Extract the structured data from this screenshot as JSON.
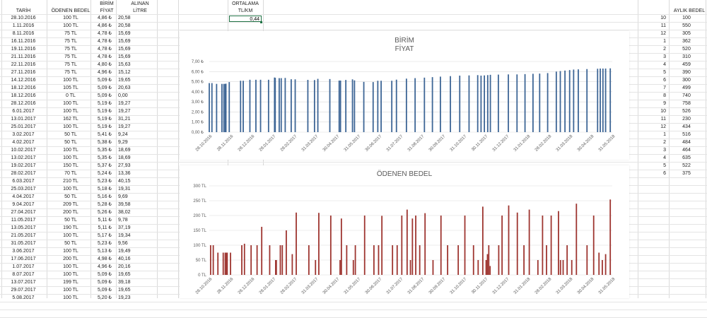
{
  "headers": {
    "tarih": "TARİH",
    "odenen_bedel": "ÖDENEN BEDEL",
    "birim_fiyat_1": "BİRİM",
    "birim_fiyat_2": "FİYAT",
    "alinan_litre_1": "ALINAN",
    "alinan_litre_2": "LİTRE",
    "ortalama_1": "ORTALAMA",
    "ortalama_2": "TL/KM",
    "aylik_bedel": "AYLIK BEDEL"
  },
  "ortalama_value": "0,44",
  "rows": [
    {
      "tarih": "28.10.2016",
      "bedel": "100 TL",
      "fiyat": "4,86 ₺",
      "litre": "20,58"
    },
    {
      "tarih": "1.11.2016",
      "bedel": "100 TL",
      "fiyat": "4,86 ₺",
      "litre": "20,58"
    },
    {
      "tarih": "8.11.2016",
      "bedel": "75 TL",
      "fiyat": "4,78 ₺",
      "litre": "15,69"
    },
    {
      "tarih": "16.11.2016",
      "bedel": "75 TL",
      "fiyat": "4,78 ₺",
      "litre": "15,69"
    },
    {
      "tarih": "19.11.2016",
      "bedel": "75 TL",
      "fiyat": "4,78 ₺",
      "litre": "15,69"
    },
    {
      "tarih": "21.11.2016",
      "bedel": "75 TL",
      "fiyat": "4,78 ₺",
      "litre": "15,69"
    },
    {
      "tarih": "22.11.2016",
      "bedel": "75 TL",
      "fiyat": "4,80 ₺",
      "litre": "15,63"
    },
    {
      "tarih": "27.11.2016",
      "bedel": "75 TL",
      "fiyat": "4,96 ₺",
      "litre": "15,12"
    },
    {
      "tarih": "14.12.2016",
      "bedel": "100 TL",
      "fiyat": "5,09 ₺",
      "litre": "19,65"
    },
    {
      "tarih": "18.12.2016",
      "bedel": "105 TL",
      "fiyat": "5,09 ₺",
      "litre": "20,63"
    },
    {
      "tarih": "18.12.2016",
      "bedel": "0 TL",
      "fiyat": "5,09 ₺",
      "litre": "0,00"
    },
    {
      "tarih": "28.12.2016",
      "bedel": "100 TL",
      "fiyat": "5,19 ₺",
      "litre": "19,27"
    },
    {
      "tarih": "6.01.2017",
      "bedel": "100 TL",
      "fiyat": "5,19 ₺",
      "litre": "19,27"
    },
    {
      "tarih": "13.01.2017",
      "bedel": "162 TL",
      "fiyat": "5,19 ₺",
      "litre": "31,21"
    },
    {
      "tarih": "25.01.2017",
      "bedel": "100 TL",
      "fiyat": "5,19 ₺",
      "litre": "19,27"
    },
    {
      "tarih": "3.02.2017",
      "bedel": "50 TL",
      "fiyat": "5,41 ₺",
      "litre": "9,24"
    },
    {
      "tarih": "4.02.2017",
      "bedel": "50 TL",
      "fiyat": "5,38 ₺",
      "litre": "9,29"
    },
    {
      "tarih": "10.02.2017",
      "bedel": "100 TL",
      "fiyat": "5,35 ₺",
      "litre": "18,69"
    },
    {
      "tarih": "13.02.2017",
      "bedel": "100 TL",
      "fiyat": "5,35 ₺",
      "litre": "18,69"
    },
    {
      "tarih": "19.02.2017",
      "bedel": "150 TL",
      "fiyat": "5,37 ₺",
      "litre": "27,93"
    },
    {
      "tarih": "28.02.2017",
      "bedel": "70 TL",
      "fiyat": "5,24 ₺",
      "litre": "13,36"
    },
    {
      "tarih": "6.03.2017",
      "bedel": "210 TL",
      "fiyat": "5,23 ₺",
      "litre": "40,15"
    },
    {
      "tarih": "25.03.2017",
      "bedel": "100 TL",
      "fiyat": "5,18 ₺",
      "litre": "19,31"
    },
    {
      "tarih": "4.04.2017",
      "bedel": "50 TL",
      "fiyat": "5,16 ₺",
      "litre": "9,69"
    },
    {
      "tarih": "9.04.2017",
      "bedel": "209 TL",
      "fiyat": "5,28 ₺",
      "litre": "39,58"
    },
    {
      "tarih": "27.04.2017",
      "bedel": "200 TL",
      "fiyat": "5,26 ₺",
      "litre": "38,02"
    },
    {
      "tarih": "11.05.2017",
      "bedel": "50 TL",
      "fiyat": "5,11 ₺",
      "litre": "9,78"
    },
    {
      "tarih": "13.05.2017",
      "bedel": "190 TL",
      "fiyat": "5,11 ₺",
      "litre": "37,19"
    },
    {
      "tarih": "21.05.2017",
      "bedel": "100 TL",
      "fiyat": "5,17 ₺",
      "litre": "19,34"
    },
    {
      "tarih": "31.05.2017",
      "bedel": "50 TL",
      "fiyat": "5,23 ₺",
      "litre": "9,56"
    },
    {
      "tarih": "3.06.2017",
      "bedel": "100 TL",
      "fiyat": "5,13 ₺",
      "litre": "19,49"
    },
    {
      "tarih": "17.06.2017",
      "bedel": "200 TL",
      "fiyat": "4,98 ₺",
      "litre": "40,16"
    },
    {
      "tarih": "1.07.2017",
      "bedel": "100 TL",
      "fiyat": "4,96 ₺",
      "litre": "20,16"
    },
    {
      "tarih": "8.07.2017",
      "bedel": "100 TL",
      "fiyat": "5,09 ₺",
      "litre": "19,65"
    },
    {
      "tarih": "13.07.2017",
      "bedel": "199 TL",
      "fiyat": "5,09 ₺",
      "litre": "39,18"
    },
    {
      "tarih": "29.07.2017",
      "bedel": "100 TL",
      "fiyat": "5,09 ₺",
      "litre": "19,65"
    },
    {
      "tarih": "5.08.2017",
      "bedel": "100 TL",
      "fiyat": "5,20 ₺",
      "litre": "19,23"
    }
  ],
  "monthly": [
    {
      "ay": "10",
      "bedel": "100"
    },
    {
      "ay": "11",
      "bedel": "550"
    },
    {
      "ay": "12",
      "bedel": "305"
    },
    {
      "ay": "1",
      "bedel": "362"
    },
    {
      "ay": "2",
      "bedel": "520"
    },
    {
      "ay": "3",
      "bedel": "310"
    },
    {
      "ay": "4",
      "bedel": "459"
    },
    {
      "ay": "5",
      "bedel": "390"
    },
    {
      "ay": "6",
      "bedel": "300"
    },
    {
      "ay": "7",
      "bedel": "499"
    },
    {
      "ay": "8",
      "bedel": "740"
    },
    {
      "ay": "9",
      "bedel": "758"
    },
    {
      "ay": "10",
      "bedel": "526"
    },
    {
      "ay": "11",
      "bedel": "230"
    },
    {
      "ay": "12",
      "bedel": "434"
    },
    {
      "ay": "1",
      "bedel": "516"
    },
    {
      "ay": "2",
      "bedel": "484"
    },
    {
      "ay": "3",
      "bedel": "464"
    },
    {
      "ay": "4",
      "bedel": "635"
    },
    {
      "ay": "5",
      "bedel": "522"
    },
    {
      "ay": "6",
      "bedel": "375"
    }
  ],
  "colors": {
    "fiyat_bar": "#3e6696",
    "bedel_bar": "#9e3530",
    "axis_text": "#595959",
    "grid": "#d9d9d9",
    "selection": "#217346"
  },
  "chart_data": [
    {
      "type": "bar",
      "title": "BİRİM FİYAT",
      "title_line1": "BİRİM",
      "title_line2": "FİYAT",
      "ylim": [
        0,
        7
      ],
      "ytick_labels": [
        "0,00 ₺",
        "1,00 ₺",
        "2,00 ₺",
        "3,00 ₺",
        "4,00 ₺",
        "5,00 ₺",
        "6,00 ₺",
        "7,00 ₺"
      ],
      "xtick_labels": [
        "28.10.2016",
        "28.11.2016",
        "28.12.2016",
        "28.01.2017",
        "28.02.2017",
        "31.03.2017",
        "30.04.2017",
        "31.05.2017",
        "30.06.2017",
        "31.07.2017",
        "31.08.2017",
        "30.09.2017",
        "31.10.2017",
        "30.11.2017",
        "31.12.2017",
        "31.01.2018",
        "28.02.2018",
        "31.03.2018",
        "30.04.2018",
        "31.05.2018"
      ],
      "x_start": "2016-10-28",
      "x_end": "2018-06-25",
      "points": [
        {
          "d": "2016-10-28",
          "v": 4.86
        },
        {
          "d": "2016-11-01",
          "v": 4.86
        },
        {
          "d": "2016-11-08",
          "v": 4.78
        },
        {
          "d": "2016-11-16",
          "v": 4.78
        },
        {
          "d": "2016-11-19",
          "v": 4.78
        },
        {
          "d": "2016-11-21",
          "v": 4.78
        },
        {
          "d": "2016-11-22",
          "v": 4.8
        },
        {
          "d": "2016-11-27",
          "v": 4.96
        },
        {
          "d": "2016-12-14",
          "v": 5.09
        },
        {
          "d": "2016-12-18",
          "v": 5.09
        },
        {
          "d": "2016-12-28",
          "v": 5.19
        },
        {
          "d": "2017-01-06",
          "v": 5.19
        },
        {
          "d": "2017-01-13",
          "v": 5.19
        },
        {
          "d": "2017-01-25",
          "v": 5.19
        },
        {
          "d": "2017-02-03",
          "v": 5.41
        },
        {
          "d": "2017-02-04",
          "v": 5.38
        },
        {
          "d": "2017-02-10",
          "v": 5.35
        },
        {
          "d": "2017-02-13",
          "v": 5.35
        },
        {
          "d": "2017-02-19",
          "v": 5.37
        },
        {
          "d": "2017-02-28",
          "v": 5.24
        },
        {
          "d": "2017-03-06",
          "v": 5.23
        },
        {
          "d": "2017-03-25",
          "v": 5.18
        },
        {
          "d": "2017-04-04",
          "v": 5.16
        },
        {
          "d": "2017-04-09",
          "v": 5.28
        },
        {
          "d": "2017-04-27",
          "v": 5.26
        },
        {
          "d": "2017-05-11",
          "v": 5.11
        },
        {
          "d": "2017-05-13",
          "v": 5.11
        },
        {
          "d": "2017-05-21",
          "v": 5.17
        },
        {
          "d": "2017-05-31",
          "v": 5.23
        },
        {
          "d": "2017-06-03",
          "v": 5.13
        },
        {
          "d": "2017-06-17",
          "v": 4.98
        },
        {
          "d": "2017-07-01",
          "v": 4.96
        },
        {
          "d": "2017-07-08",
          "v": 5.09
        },
        {
          "d": "2017-07-13",
          "v": 5.09
        },
        {
          "d": "2017-07-29",
          "v": 5.09
        },
        {
          "d": "2017-08-05",
          "v": 5.2
        },
        {
          "d": "2017-08-20",
          "v": 5.3
        },
        {
          "d": "2017-09-02",
          "v": 5.35
        },
        {
          "d": "2017-09-16",
          "v": 5.4
        },
        {
          "d": "2017-09-28",
          "v": 5.45
        },
        {
          "d": "2017-10-10",
          "v": 5.5
        },
        {
          "d": "2017-10-25",
          "v": 5.55
        },
        {
          "d": "2017-11-08",
          "v": 5.6
        },
        {
          "d": "2017-11-22",
          "v": 5.62
        },
        {
          "d": "2017-12-05",
          "v": 5.65
        },
        {
          "d": "2017-12-10",
          "v": 5.6
        },
        {
          "d": "2017-12-15",
          "v": 5.62
        },
        {
          "d": "2017-12-20",
          "v": 5.65
        },
        {
          "d": "2017-12-24",
          "v": 5.68
        },
        {
          "d": "2018-01-05",
          "v": 5.7
        },
        {
          "d": "2018-01-20",
          "v": 5.72
        },
        {
          "d": "2018-02-02",
          "v": 5.72
        },
        {
          "d": "2018-02-14",
          "v": 5.75
        },
        {
          "d": "2018-02-26",
          "v": 5.78
        },
        {
          "d": "2018-03-08",
          "v": 5.8
        },
        {
          "d": "2018-03-20",
          "v": 5.85
        },
        {
          "d": "2018-04-02",
          "v": 6.0
        },
        {
          "d": "2018-04-08",
          "v": 6.05
        },
        {
          "d": "2018-04-15",
          "v": 6.1
        },
        {
          "d": "2018-04-22",
          "v": 6.15
        },
        {
          "d": "2018-04-28",
          "v": 6.2
        },
        {
          "d": "2018-05-05",
          "v": 6.22
        },
        {
          "d": "2018-05-18",
          "v": 6.25
        },
        {
          "d": "2018-06-03",
          "v": 6.28
        },
        {
          "d": "2018-06-07",
          "v": 6.3
        },
        {
          "d": "2018-06-11",
          "v": 6.3
        },
        {
          "d": "2018-06-15",
          "v": 6.3
        },
        {
          "d": "2018-06-22",
          "v": 6.32
        }
      ]
    },
    {
      "type": "bar",
      "title": "ÖDENEN BEDEL",
      "ylim": [
        0,
        300
      ],
      "ytick_labels": [
        "0 TL",
        "50 TL",
        "100 TL",
        "150 TL",
        "200 TL",
        "250 TL",
        "300 TL"
      ],
      "xtick_labels": [
        "26.10.2016",
        "26.11.2016",
        "26.12.2016",
        "26.01.2017",
        "26.02.2017",
        "31.03.2017",
        "30.04.2017",
        "31.05.2017",
        "30.06.2017",
        "31.07.2017",
        "31.08.2017",
        "30.09.2017",
        "31.10.2017",
        "30.11.2017",
        "31.12.2017",
        "31.01.2018",
        "28.02.2018",
        "31.03.2018",
        "30.04.2018",
        "31.05.2018"
      ],
      "x_start": "2016-10-26",
      "x_end": "2018-06-25",
      "points": [
        {
          "d": "2016-10-28",
          "v": 100
        },
        {
          "d": "2016-11-01",
          "v": 100
        },
        {
          "d": "2016-11-08",
          "v": 75
        },
        {
          "d": "2016-11-16",
          "v": 75
        },
        {
          "d": "2016-11-19",
          "v": 75
        },
        {
          "d": "2016-11-21",
          "v": 75
        },
        {
          "d": "2016-11-22",
          "v": 75
        },
        {
          "d": "2016-11-27",
          "v": 75
        },
        {
          "d": "2016-12-14",
          "v": 100
        },
        {
          "d": "2016-12-18",
          "v": 105
        },
        {
          "d": "2016-12-28",
          "v": 100
        },
        {
          "d": "2017-01-06",
          "v": 100
        },
        {
          "d": "2017-01-13",
          "v": 162
        },
        {
          "d": "2017-01-25",
          "v": 100
        },
        {
          "d": "2017-02-03",
          "v": 50
        },
        {
          "d": "2017-02-04",
          "v": 50
        },
        {
          "d": "2017-02-10",
          "v": 100
        },
        {
          "d": "2017-02-13",
          "v": 100
        },
        {
          "d": "2017-02-19",
          "v": 150
        },
        {
          "d": "2017-02-28",
          "v": 70
        },
        {
          "d": "2017-03-06",
          "v": 210
        },
        {
          "d": "2017-03-25",
          "v": 100
        },
        {
          "d": "2017-04-04",
          "v": 50
        },
        {
          "d": "2017-04-09",
          "v": 209
        },
        {
          "d": "2017-04-27",
          "v": 200
        },
        {
          "d": "2017-05-11",
          "v": 50
        },
        {
          "d": "2017-05-13",
          "v": 190
        },
        {
          "d": "2017-05-21",
          "v": 100
        },
        {
          "d": "2017-05-31",
          "v": 50
        },
        {
          "d": "2017-06-03",
          "v": 100
        },
        {
          "d": "2017-06-17",
          "v": 200
        },
        {
          "d": "2017-07-01",
          "v": 100
        },
        {
          "d": "2017-07-08",
          "v": 100
        },
        {
          "d": "2017-07-13",
          "v": 199
        },
        {
          "d": "2017-07-29",
          "v": 100
        },
        {
          "d": "2017-08-05",
          "v": 100
        },
        {
          "d": "2017-08-12",
          "v": 200
        },
        {
          "d": "2017-08-20",
          "v": 220
        },
        {
          "d": "2017-08-25",
          "v": 50
        },
        {
          "d": "2017-08-28",
          "v": 190
        },
        {
          "d": "2017-09-02",
          "v": 200
        },
        {
          "d": "2017-09-08",
          "v": 100
        },
        {
          "d": "2017-09-16",
          "v": 208
        },
        {
          "d": "2017-09-28",
          "v": 50
        },
        {
          "d": "2017-10-10",
          "v": 200
        },
        {
          "d": "2017-10-20",
          "v": 100
        },
        {
          "d": "2017-11-05",
          "v": 100
        },
        {
          "d": "2017-11-15",
          "v": 200
        },
        {
          "d": "2017-11-28",
          "v": 100
        },
        {
          "d": "2017-12-05",
          "v": 50
        },
        {
          "d": "2017-12-12",
          "v": 230
        },
        {
          "d": "2017-12-17",
          "v": 50
        },
        {
          "d": "2017-12-19",
          "v": 70
        },
        {
          "d": "2017-12-21",
          "v": 100
        },
        {
          "d": "2017-12-23",
          "v": 30
        },
        {
          "d": "2018-01-05",
          "v": 100
        },
        {
          "d": "2018-01-10",
          "v": 200
        },
        {
          "d": "2018-01-20",
          "v": 234
        },
        {
          "d": "2018-02-02",
          "v": 210
        },
        {
          "d": "2018-02-12",
          "v": 100
        },
        {
          "d": "2018-02-20",
          "v": 220
        },
        {
          "d": "2018-03-05",
          "v": 50
        },
        {
          "d": "2018-03-12",
          "v": 200
        },
        {
          "d": "2018-03-18",
          "v": 100
        },
        {
          "d": "2018-03-25",
          "v": 200
        },
        {
          "d": "2018-04-05",
          "v": 215
        },
        {
          "d": "2018-04-08",
          "v": 50
        },
        {
          "d": "2018-04-12",
          "v": 50
        },
        {
          "d": "2018-04-18",
          "v": 100
        },
        {
          "d": "2018-04-25",
          "v": 50
        },
        {
          "d": "2018-05-02",
          "v": 240
        },
        {
          "d": "2018-05-18",
          "v": 100
        },
        {
          "d": "2018-05-28",
          "v": 200
        },
        {
          "d": "2018-06-05",
          "v": 75
        },
        {
          "d": "2018-06-10",
          "v": 50
        },
        {
          "d": "2018-06-15",
          "v": 70
        },
        {
          "d": "2018-06-22",
          "v": 254
        }
      ]
    }
  ]
}
